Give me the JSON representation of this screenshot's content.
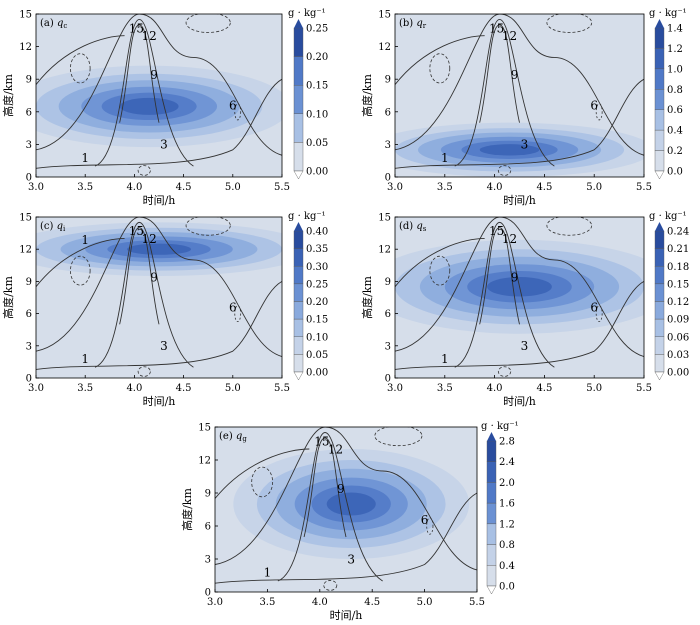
{
  "figure": {
    "xlabel": "时间/h",
    "ylabel": "高度/km",
    "unit": "g · kg⁻¹",
    "colors": {
      "shading": [
        "#d6deea",
        "#c4d2e8",
        "#a8c0e4",
        "#8aaadd",
        "#6b91d3",
        "#5079c7",
        "#3a62b5",
        "#294c9e"
      ],
      "contour": "#333333",
      "axis": "#000000"
    }
  },
  "chart_data": [
    {
      "type": "heatmap",
      "panel": "(a)",
      "variable": "q",
      "subscript": "c",
      "x": [
        3.0,
        3.5,
        4.0,
        4.5,
        5.0,
        5.5
      ],
      "xlim": [
        3.0,
        5.5
      ],
      "y": [
        0,
        3,
        6,
        9,
        12,
        15
      ],
      "ylim": [
        0,
        15
      ],
      "colorbar": [
        "0.25",
        "0.20",
        "0.15",
        "0.10",
        "0.05",
        "0.00"
      ],
      "contour_labels": [
        "15",
        "12",
        "9",
        "6",
        "3",
        "1"
      ],
      "max_region": {
        "x": [
          3.0,
          5.3
        ],
        "y": [
          3.5,
          9.5
        ]
      }
    },
    {
      "type": "heatmap",
      "panel": "(b)",
      "variable": "q",
      "subscript": "r",
      "x": [
        3.0,
        3.5,
        4.0,
        4.5,
        5.0,
        5.5
      ],
      "xlim": [
        3.0,
        5.5
      ],
      "y": [
        0,
        3,
        6,
        9,
        12,
        15
      ],
      "ylim": [
        0,
        15
      ],
      "colorbar": [
        "1.4",
        "1.2",
        "1.0",
        "0.8",
        "0.6",
        "0.4",
        "0.2",
        "0.0"
      ],
      "contour_labels": [
        "15",
        "12",
        "9",
        "6",
        "3",
        "1"
      ],
      "max_region": {
        "x": [
          3.0,
          5.3
        ],
        "y": [
          0.5,
          4.5
        ]
      }
    },
    {
      "type": "heatmap",
      "panel": "(c)",
      "variable": "q",
      "subscript": "i",
      "x": [
        3.0,
        3.5,
        4.0,
        4.5,
        5.0,
        5.5
      ],
      "xlim": [
        3.0,
        5.5
      ],
      "y": [
        0,
        3,
        6,
        9,
        12,
        15
      ],
      "ylim": [
        0,
        15
      ],
      "colorbar": [
        "0.40",
        "0.35",
        "0.30",
        "0.25",
        "0.20",
        "0.15",
        "0.10",
        "0.05",
        "0.00"
      ],
      "contour_labels": [
        "15",
        "12",
        "9",
        "6",
        "3",
        "1",
        "1"
      ],
      "max_region": {
        "x": [
          3.0,
          5.5
        ],
        "y": [
          10.0,
          14.0
        ]
      }
    },
    {
      "type": "heatmap",
      "panel": "(d)",
      "variable": "q",
      "subscript": "s",
      "x": [
        3.0,
        3.5,
        4.0,
        4.5,
        5.0,
        5.5
      ],
      "xlim": [
        3.0,
        5.5
      ],
      "y": [
        0,
        3,
        6,
        9,
        12,
        15
      ],
      "ylim": [
        0,
        15
      ],
      "colorbar": [
        "0.24",
        "0.21",
        "0.18",
        "0.15",
        "0.12",
        "0.09",
        "0.06",
        "0.03",
        "0.00"
      ],
      "contour_labels": [
        "15",
        "12",
        "9",
        "6",
        "3",
        "1"
      ],
      "max_region": {
        "x": [
          3.0,
          5.5
        ],
        "y": [
          5.0,
          12.0
        ]
      }
    },
    {
      "type": "heatmap",
      "panel": "(e)",
      "variable": "q",
      "subscript": "g",
      "x": [
        3.0,
        3.5,
        4.0,
        4.5,
        5.0,
        5.5
      ],
      "xlim": [
        3.0,
        5.5
      ],
      "y": [
        0,
        3,
        6,
        9,
        12,
        15
      ],
      "ylim": [
        0,
        15
      ],
      "colorbar": [
        "2.8",
        "2.4",
        "2.0",
        "1.6",
        "1.2",
        "0.8",
        "0.4",
        "0.0"
      ],
      "contour_labels": [
        "15",
        "12",
        "9",
        "6",
        "3",
        "1"
      ],
      "max_region": {
        "x": [
          3.4,
          5.2
        ],
        "y": [
          4.0,
          12.0
        ]
      }
    }
  ]
}
